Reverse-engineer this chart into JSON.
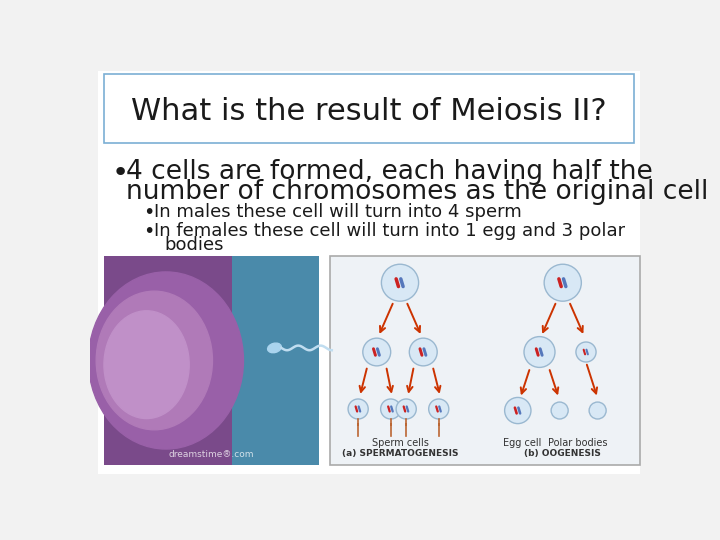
{
  "title": "What is the result of Meiosis II?",
  "title_fontsize": 22,
  "title_color": "#1a1a1a",
  "background_color": "#ffffff",
  "border_color": "#7bafd4",
  "bullet1_line1": "4 cells are formed, each having half the",
  "bullet1_line2": "number of chromosomes as the original cell",
  "bullet1_fontsize": 19,
  "sub_bullet1": "In males these cell will turn into 4 sperm",
  "sub_bullet2_line1": "In females these cell will turn into 1 egg and 3 polar",
  "sub_bullet2_line2": "bodies",
  "sub_bullet_fontsize": 13,
  "text_color": "#1a1a1a",
  "slide_bg": "#f2f2f2",
  "cell_color": "#d8e8f5",
  "cell_edge": "#9ab8d0",
  "arrow_color": "#cc3300",
  "chr_red": "#cc2222",
  "chr_blue": "#5577bb"
}
